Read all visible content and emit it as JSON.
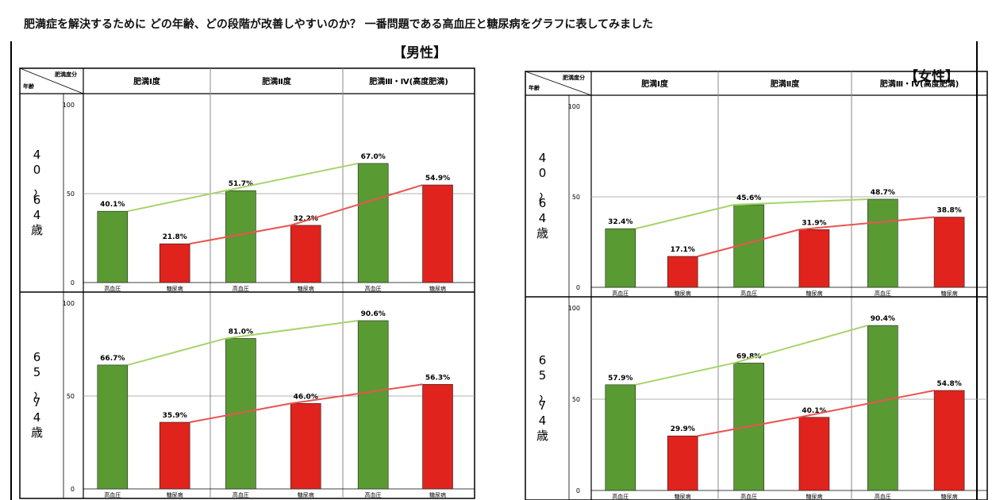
{
  "headline": "肥満症を解決するために どの年齢、どの段階が改善しやすいのか？ 一番問題である高血圧と糖尿病をグラフに表してみました",
  "corner_label_top": "肥満度分",
  "corner_label_bottom": "年齢",
  "colors": {
    "hypertension": "#5a9a32",
    "diabetes": "#e0231c",
    "hyp_line": "#a6d46a",
    "dia_line": "#e85450"
  },
  "chart_data": [
    {
      "type": "bar",
      "title": "【男性】",
      "columns": [
        "肥満Ⅰ度",
        "肥満Ⅱ度",
        "肥満Ⅲ・Ⅳ(高度肥満)"
      ],
      "row_labels": [
        "40〜64歳",
        "65〜74歳"
      ],
      "bar_labels": [
        "高血圧",
        "糖尿病"
      ],
      "ylim": [
        0,
        100
      ],
      "yticks": [
        0,
        50,
        100
      ],
      "rows": [
        {
          "age": "40〜64歳",
          "series": [
            {
              "name": "高血圧",
              "values": [
                40.1,
                51.7,
                67.0
              ],
              "labels": [
                "40.1%",
                "51.7%",
                "67.0%"
              ]
            },
            {
              "name": "糖尿病",
              "values": [
                21.8,
                32.2,
                54.9
              ],
              "labels": [
                "21.8%",
                "32.2%",
                "54.9%"
              ]
            }
          ]
        },
        {
          "age": "65〜74歳",
          "series": [
            {
              "name": "高血圧",
              "values": [
                66.7,
                81.0,
                90.6
              ],
              "labels": [
                "66.7%",
                "81.0%",
                "90.6%"
              ]
            },
            {
              "name": "糖尿病",
              "values": [
                35.9,
                46.0,
                56.3
              ],
              "labels": [
                "35.9%",
                "46.0%",
                "56.3%"
              ]
            }
          ]
        }
      ]
    },
    {
      "type": "bar",
      "title": "【女性】",
      "columns": [
        "肥満Ⅰ度",
        "肥満Ⅱ度",
        "肥満Ⅲ・Ⅳ(高度肥満)"
      ],
      "row_labels": [
        "40〜64歳",
        "65〜74歳"
      ],
      "bar_labels": [
        "高血圧",
        "糖尿病"
      ],
      "ylim": [
        0,
        100
      ],
      "yticks": [
        0,
        50,
        100
      ],
      "rows": [
        {
          "age": "40〜64歳",
          "series": [
            {
              "name": "高血圧",
              "values": [
                32.4,
                45.6,
                48.7
              ],
              "labels": [
                "32.4%",
                "45.6%",
                "48.7%"
              ]
            },
            {
              "name": "糖尿病",
              "values": [
                17.1,
                31.9,
                38.8
              ],
              "labels": [
                "17.1%",
                "31.9%",
                "38.8%"
              ]
            }
          ]
        },
        {
          "age": "65〜74歳",
          "series": [
            {
              "name": "高血圧",
              "values": [
                57.9,
                69.8,
                90.4
              ],
              "labels": [
                "57.9%",
                "69.8%",
                "90.4%"
              ]
            },
            {
              "name": "糖尿病",
              "values": [
                29.9,
                40.1,
                54.8
              ],
              "labels": [
                "29.9%",
                "40.1%",
                "54.8%"
              ]
            }
          ]
        }
      ]
    }
  ]
}
